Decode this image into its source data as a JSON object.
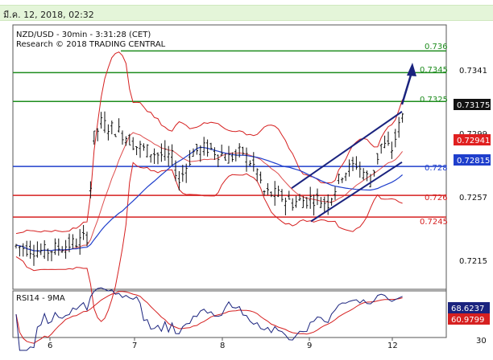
{
  "timestamp": "มี.ค. 12, 2018, 02:32",
  "chart_data": {
    "type": "candlestick",
    "title": "NZD/USD - 30min - 3:31:28 (CET)",
    "subtitle": "Research © 2018 TRADING CENTRAL",
    "x_ticks": [
      "6",
      "7",
      "8",
      "9",
      "12"
    ],
    "y_ticks": [
      "0.7341",
      "0.7299",
      "0.7257",
      "0.7215"
    ],
    "ylim": [
      0.7195,
      0.7378
    ],
    "last_price": "0.73175",
    "levels": [
      {
        "label": "0.736",
        "value": 0.736,
        "color": "#1e8c1e",
        "role": "resistance"
      },
      {
        "label": "0.7345",
        "value": 0.7345,
        "color": "#1e8c1e",
        "role": "resistance"
      },
      {
        "label": "0.7325",
        "value": 0.7325,
        "color": "#1e8c1e",
        "role": "resistance"
      },
      {
        "label": "0.72941",
        "value": 0.72941,
        "color": "#e02020",
        "role": "ma-marker"
      },
      {
        "label": "0.72815",
        "value": 0.72815,
        "color": "#1f3fcc",
        "role": "pivot-marker"
      },
      {
        "label": "0.728",
        "value": 0.728,
        "color": "#1f3fcc",
        "role": "pivot"
      },
      {
        "label": "0.726",
        "value": 0.726,
        "color": "#d62020",
        "role": "support"
      },
      {
        "label": "0.7245",
        "value": 0.7245,
        "color": "#d62020",
        "role": "support"
      }
    ],
    "rsi": {
      "title": "RSI14 - 9MA",
      "value": "68.6237",
      "ma_value": "60.9799",
      "tick": "30"
    },
    "colors": {
      "candles": "#111111",
      "bollinger": "#d62020",
      "ma": "#1f3fcc",
      "channel": "#1a237e",
      "resistance": "#1e8c1e",
      "support": "#d62020",
      "pivot": "#1f3fcc"
    }
  }
}
